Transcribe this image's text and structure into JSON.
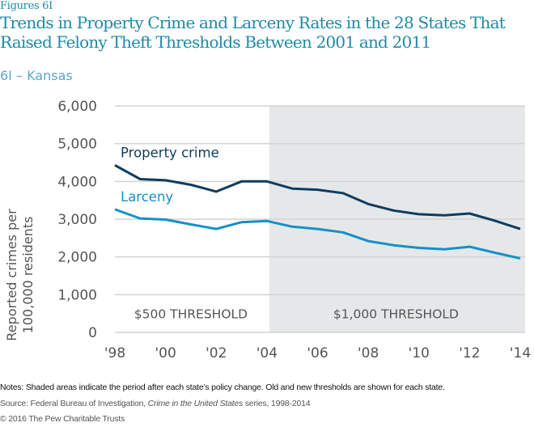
{
  "header": {
    "figure_label": "Figures 6I",
    "title": "Trends in Property Crime and Larceny Rates in the 28 States That Raised Felony Theft Thresholds Between 2001 and 2011",
    "subtitle": "6I – Kansas"
  },
  "footer": {
    "notes": "Notes: Shaded areas indicate the period after each state’s policy change. Old and new thresholds are shown for each state.",
    "source_prefix": "Source: Federal Bureau of Investigation, ",
    "source_italic": "Crime in the United States",
    "source_suffix": " series, 1998-2014",
    "copyright": "© 2016 The Pew Charitable Trusts"
  },
  "colors": {
    "title": "#1f8aa6",
    "subtitle": "#5ba8c9",
    "property_crime": "#0e3d5f",
    "larceny": "#1590c8",
    "shade": "#e6e7e9",
    "grid": "#d3d3d3",
    "axis_text": "#555555"
  },
  "chart_data": {
    "type": "line",
    "title": "6I – Kansas",
    "xlabel": "",
    "ylabel": "Reported crimes per 100,000 residents",
    "x": [
      1998,
      1999,
      2000,
      2001,
      2002,
      2003,
      2004,
      2005,
      2006,
      2007,
      2008,
      2009,
      2010,
      2011,
      2012,
      2013,
      2014
    ],
    "xlim": [
      1998,
      2014
    ],
    "ylim": [
      0,
      6000
    ],
    "x_tick_values": [
      1998,
      2000,
      2002,
      2004,
      2006,
      2008,
      2010,
      2012,
      2014
    ],
    "x_tick_labels": [
      "'98",
      "'00",
      "'02",
      "'04",
      "'06",
      "'08",
      "'10",
      "'12",
      "'14"
    ],
    "y_tick_values": [
      0,
      1000,
      2000,
      3000,
      4000,
      5000,
      6000
    ],
    "y_tick_labels": [
      "0",
      "1,000",
      "2,000",
      "3,000",
      "4,000",
      "5,000",
      "6,000"
    ],
    "grid": true,
    "series": [
      {
        "name": "Property crime",
        "values": [
          4430,
          4060,
          4030,
          3910,
          3730,
          4000,
          4000,
          3810,
          3780,
          3690,
          3400,
          3230,
          3130,
          3100,
          3150,
          2960,
          2740
        ]
      },
      {
        "name": "Larceny",
        "values": [
          3260,
          3020,
          2990,
          2860,
          2740,
          2920,
          2950,
          2800,
          2740,
          2650,
          2420,
          2310,
          2240,
          2200,
          2270,
          2110,
          1960
        ]
      }
    ],
    "shaded_regions": [
      {
        "from": 2004,
        "to": 2014,
        "label": "$1,000 THRESHOLD"
      }
    ],
    "region_labels": [
      {
        "from": 1998,
        "to": 2004,
        "label": "$500 THRESHOLD"
      },
      {
        "from": 2004,
        "to": 2014,
        "label": "$1,000 THRESHOLD"
      }
    ],
    "legend": "inline-labels-left"
  }
}
